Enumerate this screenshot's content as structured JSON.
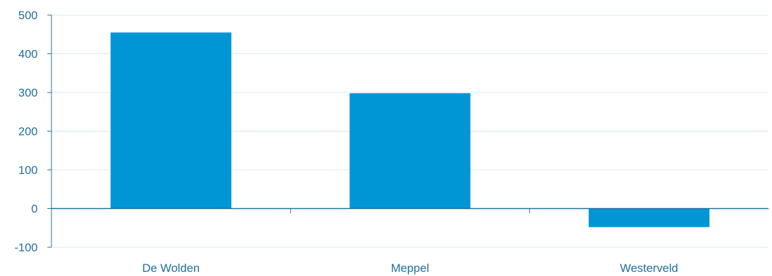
{
  "chart_data": {
    "type": "bar",
    "title": "",
    "xlabel": "",
    "ylabel": "",
    "categories": [
      "De Wolden",
      "Meppel",
      "Westerveld"
    ],
    "series": [
      {
        "values": [
          455,
          298,
          -48
        ]
      }
    ],
    "ylim": [
      -100,
      500
    ],
    "yticks": [
      500,
      400,
      300,
      200,
      100,
      0,
      -100
    ],
    "grid": true,
    "legend": "none",
    "colors": {
      "bar": "#0096d6",
      "axis": "#1f6f9e",
      "grid": "#d6e8f5",
      "text": "#1f6f9e"
    }
  }
}
